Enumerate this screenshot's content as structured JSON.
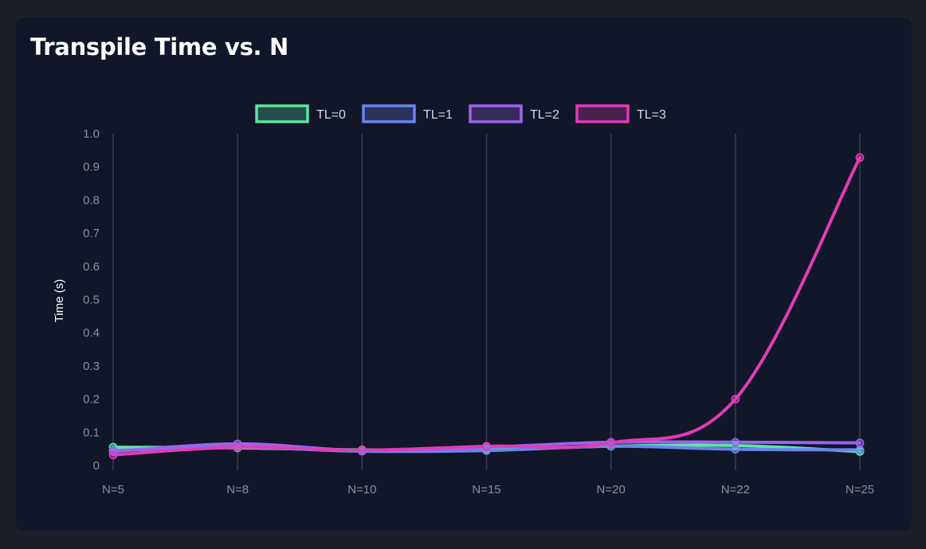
{
  "title": "Transpile Time vs. N",
  "chart_data": {
    "type": "line",
    "title": "Transpile Time vs. N",
    "xlabel": "",
    "ylabel": "Time (s)",
    "categories": [
      "N=5",
      "N=8",
      "N=10",
      "N=15",
      "N=20",
      "N=22",
      "N=25"
    ],
    "ylim": [
      0,
      1.0
    ],
    "yticks": [
      0,
      0.1,
      0.2,
      0.3,
      0.4,
      0.5,
      0.6,
      0.7,
      0.8,
      0.9,
      1.0
    ],
    "ytick_labels": [
      "0",
      "0.1",
      "0.2",
      "0.3",
      "0.4",
      "0.5",
      "0.6",
      "0.7",
      "0.8",
      "0.9",
      "1.0"
    ],
    "grid": "vertical",
    "legend": "top-center",
    "series": [
      {
        "name": "TL=0",
        "color": "#5ee3a6",
        "values": [
          0.055,
          0.053,
          0.047,
          0.048,
          0.058,
          0.06,
          0.042
        ]
      },
      {
        "name": "TL=1",
        "color": "#6b83ee",
        "values": [
          0.045,
          0.055,
          0.043,
          0.045,
          0.058,
          0.049,
          0.047
        ]
      },
      {
        "name": "TL=2",
        "color": "#9a64ec",
        "values": [
          0.042,
          0.065,
          0.045,
          0.055,
          0.07,
          0.07,
          0.068
        ]
      },
      {
        "name": "TL=3",
        "color": "#e03cb6",
        "values": [
          0.032,
          0.055,
          0.046,
          0.058,
          0.068,
          0.2,
          0.928
        ]
      }
    ]
  }
}
